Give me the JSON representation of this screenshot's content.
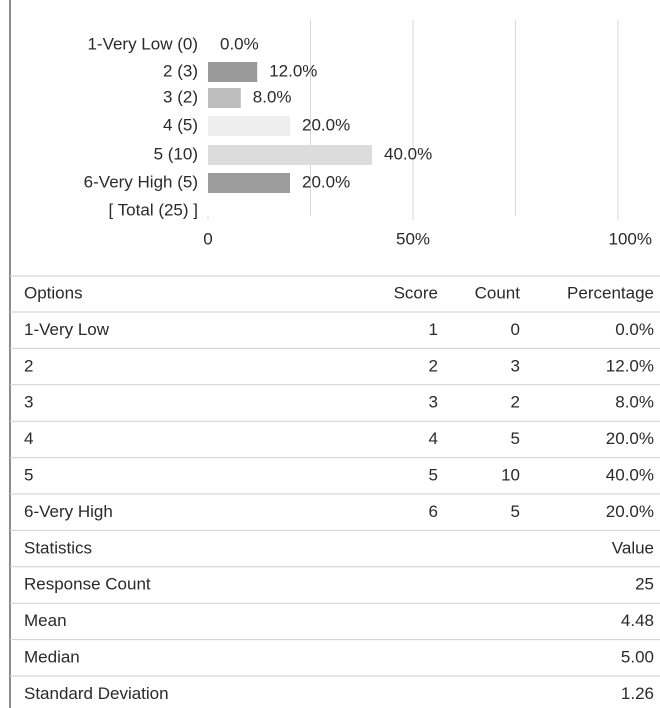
{
  "chart_data": {
    "type": "bar",
    "orientation": "horizontal",
    "categories": [
      "1-Very Low (0)",
      "2 (3)",
      "3 (2)",
      "4 (5)",
      "5 (10)",
      "6-Very High (5)"
    ],
    "values": [
      0,
      12,
      8,
      20,
      40,
      20
    ],
    "value_labels": [
      "0.0%",
      "12.0%",
      "8.0%",
      "20.0%",
      "40.0%",
      "20.0%"
    ],
    "colors": [
      "#999999",
      "#9a9a9a",
      "#bdbdbd",
      "#eeeeee",
      "#dcdcdc",
      "#9c9c9c"
    ],
    "total_label": "[ Total (25) ]",
    "xlim": [
      0,
      100
    ],
    "xticks": [
      0,
      {
        "value": 50,
        "label": "50%"
      },
      {
        "value": 100,
        "label": "100%"
      }
    ],
    "xgrid": [
      25,
      50,
      75,
      100
    ]
  },
  "table": {
    "header": [
      "Options",
      "Score",
      "Count",
      "Percentage"
    ],
    "rows": [
      [
        "1-Very Low",
        1,
        0,
        "0.0%"
      ],
      [
        "2",
        2,
        3,
        "12.0%"
      ],
      [
        "3",
        3,
        2,
        "8.0%"
      ],
      [
        "4",
        4,
        5,
        "20.0%"
      ],
      [
        "5",
        5,
        10,
        "40.0%"
      ],
      [
        "6-Very High",
        6,
        5,
        "20.0%"
      ]
    ]
  },
  "statistics": {
    "header": [
      "Statistics",
      "Value"
    ],
    "rows": [
      [
        "Response Count",
        25
      ],
      [
        "Mean",
        4.48
      ],
      [
        "Median",
        "5.00"
      ],
      [
        "Standard Deviation",
        1.26
      ]
    ]
  }
}
